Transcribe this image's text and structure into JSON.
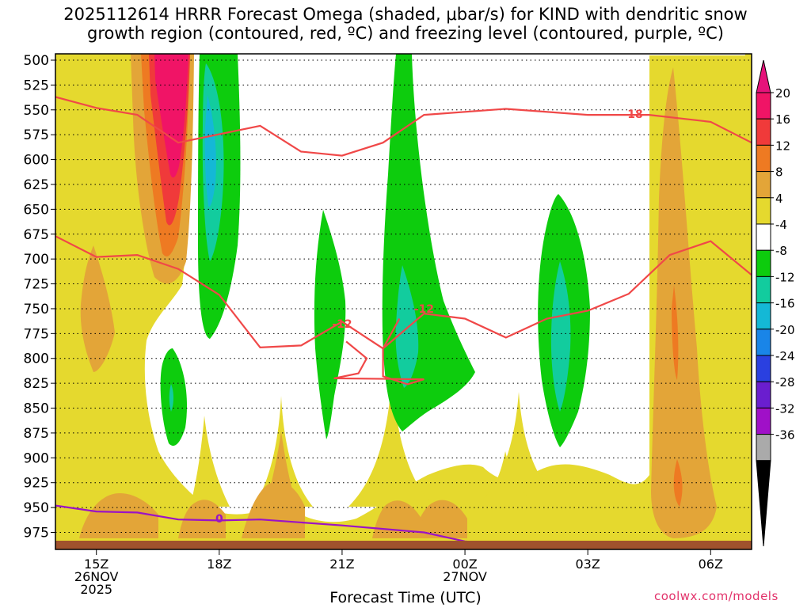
{
  "title_line1": "2025112614 HRRR Forecast Omega (shaded, μbar/s) for KIND with dendritic snow",
  "title_line2": "growth region (contoured, red, ºC) and freezing level (contoured, purple, ºC)",
  "credit": "coolwx.com/models",
  "chart_data": {
    "type": "heatmap",
    "title": "2025112614 HRRR Forecast Omega (shaded, μbar/s) for KIND with dendritic snow growth region (contoured, red, ºC) and freezing level (contoured, purple, ºC)",
    "xlabel": "Forecast Time (UTC)",
    "ylabel": "",
    "x_range_hours": [
      14,
      31
    ],
    "y_axis": "pressure (mb), inverted",
    "ylim": [
      500,
      990
    ],
    "yticks": [
      500,
      525,
      550,
      575,
      600,
      625,
      650,
      675,
      700,
      725,
      750,
      775,
      800,
      825,
      850,
      875,
      900,
      925,
      950,
      975
    ],
    "xticks": [
      {
        "hour": 15,
        "lines": [
          "15Z",
          "26NOV",
          "2025"
        ]
      },
      {
        "hour": 18,
        "lines": [
          "18Z"
        ]
      },
      {
        "hour": 21,
        "lines": [
          "21Z"
        ]
      },
      {
        "hour": 24,
        "lines": [
          "00Z",
          "27NOV"
        ]
      },
      {
        "hour": 27,
        "lines": [
          "03Z"
        ]
      },
      {
        "hour": 30,
        "lines": [
          "06Z"
        ]
      }
    ],
    "grid": "dotted horizontal at each pressure tick",
    "colorbar": {
      "levels": [
        20,
        16,
        12,
        8,
        4,
        -4,
        -8,
        -12,
        -16,
        -20,
        -24,
        -28,
        -32,
        -36
      ],
      "colors": [
        "#f01466",
        "#f03a3a",
        "#ee7a22",
        "#e3a538",
        "#e5d92e",
        "#ffffff",
        "#0dcc0d",
        "#12cc9e",
        "#14b8d6",
        "#1985e8",
        "#2a40e0",
        "#6a1ecf",
        "#a010c8",
        "#aaaaaa"
      ],
      "top_arrow_color": "#e6137a",
      "bottom_arrow_color": "#000000",
      "level_labels": [
        "20",
        "16",
        "12",
        "8",
        "4",
        "-4",
        "-8",
        "-12",
        "-16",
        "-20",
        "-24",
        "-28",
        "-32",
        "-36"
      ]
    },
    "contour_labels": [
      {
        "text": "-18",
        "color": "#f04848",
        "hour": 28.1,
        "p": 554
      },
      {
        "text": "-12",
        "color": "#f04848",
        "hour": 21.0,
        "p": 765
      },
      {
        "text": "-12",
        "color": "#f04848",
        "hour": 23.0,
        "p": 750
      },
      {
        "text": "0",
        "color": "#9b13c5",
        "hour": 18.0,
        "p": 961
      }
    ],
    "dgz_top_contour": [
      [
        14,
        537
      ],
      [
        15,
        548
      ],
      [
        16,
        555
      ],
      [
        17,
        583
      ],
      [
        19,
        566
      ],
      [
        20,
        592
      ],
      [
        21,
        596
      ],
      [
        22,
        583
      ],
      [
        23,
        555
      ],
      [
        25,
        549
      ],
      [
        27,
        555
      ],
      [
        28.5,
        555
      ],
      [
        30,
        562
      ],
      [
        31,
        583
      ]
    ],
    "dgz_bottom_contour": [
      [
        14,
        677
      ],
      [
        15,
        698
      ],
      [
        16,
        696
      ],
      [
        17,
        710
      ],
      [
        18,
        736
      ],
      [
        19,
        789
      ],
      [
        20,
        787
      ],
      [
        21,
        763
      ],
      [
        22,
        790
      ],
      [
        23,
        755
      ],
      [
        24,
        760
      ],
      [
        25,
        779
      ],
      [
        26,
        760
      ],
      [
        27,
        752
      ],
      [
        28,
        735
      ],
      [
        29,
        696
      ],
      [
        30,
        682
      ],
      [
        31,
        716
      ]
    ],
    "freezing_level_contour": [
      [
        14,
        948
      ],
      [
        15,
        954
      ],
      [
        16,
        955
      ],
      [
        17,
        962
      ],
      [
        18,
        963
      ],
      [
        19,
        962
      ],
      [
        21,
        968
      ],
      [
        23,
        975
      ],
      [
        24,
        984
      ],
      [
        26,
        990
      ]
    ],
    "ground_band_pressure_start": 983
  }
}
